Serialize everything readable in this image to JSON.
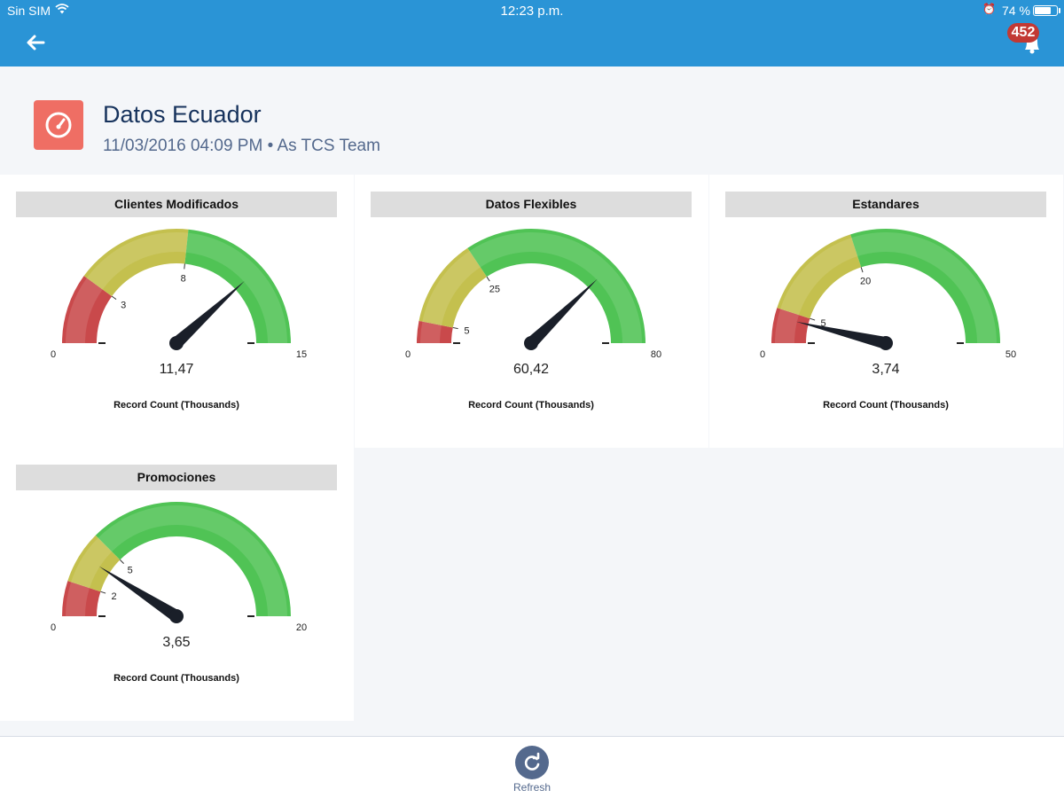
{
  "status_bar": {
    "carrier": "Sin SIM",
    "time": "12:23 p.m.",
    "battery": "74 %",
    "battery_level": 0.74
  },
  "nav": {
    "notification_count": "452"
  },
  "dashboard": {
    "title": "Datos Ecuador",
    "subtitle": "11/03/2016 04:09 PM • As TCS Team"
  },
  "colors": {
    "header_blue": "#2a94d6",
    "red_zone": "#c9494b",
    "yellow_zone": "#c4c04e",
    "green_zone": "#50c355",
    "needle": "#1a1f29"
  },
  "gauges": [
    {
      "title": "Clientes Modificados",
      "min": 0,
      "max": 15,
      "break1": 3,
      "break2": 8,
      "value": 11.47,
      "value_label": "11,47",
      "min_label": "0",
      "max_label": "15",
      "break1_label": "3",
      "break2_label": "8",
      "unit_label": "Record Count (Thousands)"
    },
    {
      "title": "Datos Flexibles",
      "min": 0,
      "max": 80,
      "break1": 5,
      "break2": 25,
      "value": 60.42,
      "value_label": "60,42",
      "min_label": "0",
      "max_label": "80",
      "break1_label": "5",
      "break2_label": "25",
      "unit_label": "Record Count (Thousands)"
    },
    {
      "title": "Estandares",
      "min": 0,
      "max": 50,
      "break1": 5,
      "break2": 20,
      "value": 3.74,
      "value_label": "3,74",
      "min_label": "0",
      "max_label": "50",
      "break1_label": "5",
      "break2_label": "20",
      "unit_label": "Record Count (Thousands)"
    },
    {
      "title": "Promociones",
      "min": 0,
      "max": 20,
      "break1": 2,
      "break2": 5,
      "value": 3.65,
      "value_label": "3,65",
      "min_label": "0",
      "max_label": "20",
      "break1_label": "2",
      "break2_label": "5",
      "unit_label": "Record Count (Thousands)"
    }
  ],
  "footer": {
    "refresh_label": "Refresh"
  }
}
